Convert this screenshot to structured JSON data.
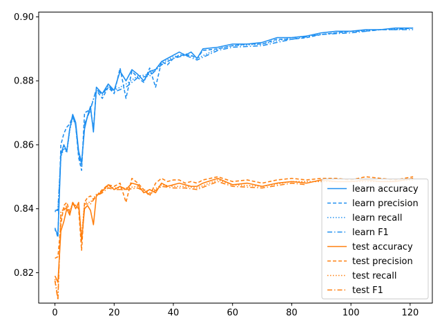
{
  "chart_data": {
    "type": "line",
    "title": "",
    "xlabel": "",
    "ylabel": "",
    "xlim": [
      -5.5,
      127.5
    ],
    "ylim": [
      0.8105,
      0.9015
    ],
    "xticks": [
      0,
      20,
      40,
      60,
      80,
      100,
      120
    ],
    "yticks": [
      0.82,
      0.84,
      0.86,
      0.88,
      0.9
    ],
    "grid": false,
    "legend_position": "lower-right",
    "series": [
      {
        "name": "learn accuracy",
        "color": "#1f8ff0",
        "dash": "solid",
        "x": [
          0,
          1,
          2,
          3,
          4,
          5,
          6,
          7,
          8,
          9,
          10,
          11,
          12,
          13,
          14,
          16,
          18,
          20,
          22,
          24,
          26,
          28,
          30,
          32,
          34,
          36,
          38,
          40,
          42,
          44,
          46,
          48,
          50,
          55,
          60,
          65,
          70,
          75,
          80,
          85,
          90,
          95,
          100,
          105,
          110,
          115,
          121
        ],
        "y": [
          0.8335,
          0.832,
          0.857,
          0.86,
          0.858,
          0.865,
          0.8695,
          0.867,
          0.858,
          0.8545,
          0.865,
          0.869,
          0.872,
          0.864,
          0.878,
          0.876,
          0.879,
          0.877,
          0.883,
          0.88,
          0.8835,
          0.882,
          0.88,
          0.883,
          0.8835,
          0.886,
          0.887,
          0.888,
          0.889,
          0.888,
          0.889,
          0.887,
          0.89,
          0.8905,
          0.8915,
          0.8915,
          0.892,
          0.8935,
          0.8935,
          0.894,
          0.895,
          0.8955,
          0.8955,
          0.896,
          0.896,
          0.8965,
          0.8965
        ]
      },
      {
        "name": "learn precision",
        "color": "#1f8ff0",
        "dash": "5,3",
        "x": [
          0,
          1,
          2,
          3,
          4,
          5,
          6,
          7,
          8,
          9,
          10,
          11,
          12,
          13,
          14,
          16,
          18,
          20,
          22,
          24,
          26,
          28,
          30,
          32,
          34,
          36,
          38,
          40,
          42,
          44,
          46,
          48,
          50,
          55,
          60,
          65,
          70,
          75,
          80,
          85,
          90,
          95,
          100,
          105,
          110,
          115,
          121
        ],
        "y": [
          0.834,
          0.831,
          0.86,
          0.8635,
          0.8655,
          0.8665,
          0.869,
          0.866,
          0.856,
          0.852,
          0.87,
          0.8705,
          0.871,
          0.865,
          0.877,
          0.8745,
          0.878,
          0.876,
          0.884,
          0.8745,
          0.883,
          0.881,
          0.8795,
          0.884,
          0.878,
          0.886,
          0.885,
          0.887,
          0.888,
          0.888,
          0.888,
          0.887,
          0.8895,
          0.89,
          0.891,
          0.8915,
          0.8915,
          0.893,
          0.893,
          0.8935,
          0.8945,
          0.895,
          0.8955,
          0.8955,
          0.896,
          0.896,
          0.8965
        ]
      },
      {
        "name": "learn recall",
        "color": "#1f8ff0",
        "dash": "1.5,2.5",
        "x": [
          0,
          1,
          2,
          3,
          4,
          5,
          6,
          7,
          8,
          9,
          10,
          12,
          14,
          16,
          18,
          20,
          24,
          28,
          32,
          36,
          40,
          44,
          48,
          55,
          60,
          70,
          80,
          90,
          100,
          110,
          121
        ],
        "y": [
          0.839,
          0.84,
          0.856,
          0.859,
          0.8575,
          0.8645,
          0.8685,
          0.866,
          0.857,
          0.854,
          0.866,
          0.8715,
          0.877,
          0.876,
          0.8785,
          0.877,
          0.879,
          0.8815,
          0.882,
          0.8855,
          0.8875,
          0.8885,
          0.887,
          0.89,
          0.891,
          0.8915,
          0.8935,
          0.8945,
          0.8955,
          0.896,
          0.8965
        ]
      },
      {
        "name": "learn F1",
        "color": "#1f8ff0",
        "dash": "7,3,1.5,3",
        "x": [
          0,
          1,
          2,
          3,
          4,
          5,
          6,
          7,
          8,
          9,
          10,
          12,
          14,
          16,
          18,
          20,
          24,
          28,
          32,
          36,
          40,
          44,
          48,
          55,
          60,
          70,
          80,
          90,
          100,
          110,
          121
        ],
        "y": [
          0.8395,
          0.8395,
          0.8565,
          0.8595,
          0.858,
          0.865,
          0.869,
          0.8665,
          0.857,
          0.8535,
          0.8665,
          0.871,
          0.8775,
          0.8755,
          0.8785,
          0.8765,
          0.878,
          0.881,
          0.8815,
          0.885,
          0.887,
          0.888,
          0.8865,
          0.8895,
          0.8905,
          0.891,
          0.893,
          0.8945,
          0.895,
          0.896,
          0.896
        ]
      },
      {
        "name": "test accuracy",
        "color": "#ff7f0e",
        "dash": "solid",
        "x": [
          0,
          1,
          2,
          3,
          4,
          5,
          6,
          7,
          8,
          9,
          10,
          11,
          12,
          13,
          14,
          16,
          18,
          20,
          22,
          24,
          26,
          28,
          30,
          32,
          34,
          36,
          38,
          40,
          42,
          44,
          46,
          48,
          50,
          55,
          60,
          65,
          70,
          75,
          80,
          85,
          90,
          95,
          100,
          105,
          110,
          115,
          121
        ],
        "y": [
          0.819,
          0.817,
          0.833,
          0.836,
          0.84,
          0.838,
          0.842,
          0.84,
          0.842,
          0.83,
          0.84,
          0.841,
          0.8395,
          0.835,
          0.844,
          0.8455,
          0.8475,
          0.846,
          0.847,
          0.846,
          0.848,
          0.8475,
          0.845,
          0.846,
          0.845,
          0.848,
          0.847,
          0.8475,
          0.848,
          0.8475,
          0.847,
          0.847,
          0.848,
          0.8495,
          0.8475,
          0.848,
          0.847,
          0.848,
          0.8485,
          0.848,
          0.849,
          0.8485,
          0.8485,
          0.849,
          0.8485,
          0.8485,
          0.8495
        ]
      },
      {
        "name": "test precision",
        "color": "#ff7f0e",
        "dash": "5,3",
        "x": [
          0,
          1,
          2,
          3,
          4,
          5,
          6,
          7,
          8,
          9,
          10,
          11,
          12,
          13,
          14,
          16,
          18,
          20,
          22,
          24,
          26,
          28,
          30,
          32,
          34,
          36,
          38,
          40,
          42,
          44,
          46,
          48,
          50,
          55,
          60,
          65,
          70,
          75,
          80,
          85,
          90,
          95,
          100,
          105,
          110,
          115,
          121
        ],
        "y": [
          0.8245,
          0.825,
          0.835,
          0.841,
          0.842,
          0.839,
          0.8415,
          0.841,
          0.84,
          0.827,
          0.842,
          0.8435,
          0.844,
          0.843,
          0.844,
          0.846,
          0.8475,
          0.847,
          0.848,
          0.842,
          0.8495,
          0.848,
          0.846,
          0.844,
          0.848,
          0.8495,
          0.8485,
          0.849,
          0.849,
          0.848,
          0.8485,
          0.848,
          0.849,
          0.85,
          0.8485,
          0.849,
          0.848,
          0.849,
          0.8495,
          0.849,
          0.8495,
          0.8495,
          0.849,
          0.85,
          0.8495,
          0.849,
          0.85
        ]
      },
      {
        "name": "test recall",
        "color": "#ff7f0e",
        "dash": "1.5,2.5",
        "x": [
          0,
          1,
          2,
          3,
          4,
          5,
          6,
          7,
          8,
          9,
          10,
          12,
          14,
          16,
          18,
          20,
          24,
          28,
          32,
          36,
          40,
          44,
          48,
          55,
          60,
          70,
          80,
          90,
          100,
          110,
          121
        ],
        "y": [
          0.818,
          0.812,
          0.839,
          0.84,
          0.841,
          0.839,
          0.842,
          0.841,
          0.8415,
          0.831,
          0.842,
          0.842,
          0.8445,
          0.8455,
          0.847,
          0.8465,
          0.8465,
          0.847,
          0.845,
          0.8475,
          0.847,
          0.847,
          0.8465,
          0.849,
          0.8475,
          0.847,
          0.8485,
          0.8485,
          0.8485,
          0.8485,
          0.849
        ]
      },
      {
        "name": "test F1",
        "color": "#ff7f0e",
        "dash": "7,3,1.5,3",
        "x": [
          0,
          1,
          2,
          3,
          4,
          5,
          6,
          7,
          8,
          9,
          10,
          12,
          14,
          16,
          18,
          20,
          24,
          28,
          32,
          36,
          40,
          44,
          48,
          55,
          60,
          70,
          80,
          85
        ],
        "y": [
          0.8175,
          0.8115,
          0.838,
          0.8395,
          0.8405,
          0.8385,
          0.8415,
          0.8405,
          0.841,
          0.83,
          0.8415,
          0.8415,
          0.844,
          0.845,
          0.8465,
          0.846,
          0.846,
          0.8465,
          0.8445,
          0.847,
          0.8465,
          0.8465,
          0.846,
          0.8485,
          0.847,
          0.8465,
          0.848,
          0.8475
        ]
      }
    ]
  }
}
